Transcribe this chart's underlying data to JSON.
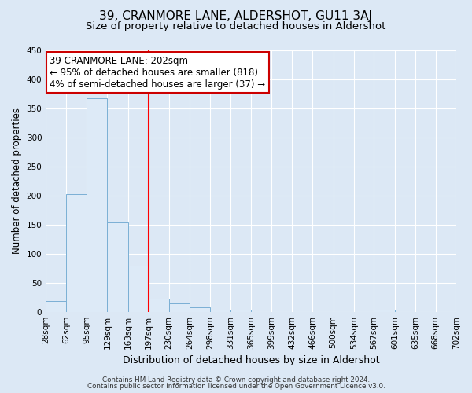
{
  "title": "39, CRANMORE LANE, ALDERSHOT, GU11 3AJ",
  "subtitle": "Size of property relative to detached houses in Aldershot",
  "xlabel": "Distribution of detached houses by size in Aldershot",
  "ylabel": "Number of detached properties",
  "bin_edges": [
    28,
    62,
    95,
    129,
    163,
    197,
    230,
    264,
    298,
    331,
    365,
    399,
    432,
    466,
    500,
    534,
    567,
    601,
    635,
    668,
    702
  ],
  "bar_heights": [
    18,
    203,
    367,
    154,
    80,
    22,
    15,
    8,
    3,
    3,
    0,
    0,
    0,
    0,
    0,
    0,
    3,
    0,
    0,
    0
  ],
  "bar_facecolor": "#ddeaf7",
  "bar_edgecolor": "#7aafd4",
  "red_line_x": 197,
  "annotation_line1": "39 CRANMORE LANE: 202sqm",
  "annotation_line2": "← 95% of detached houses are smaller (818)",
  "annotation_line3": "4% of semi-detached houses are larger (37) →",
  "annotation_box_edgecolor": "#cc0000",
  "annotation_box_facecolor": "#ffffff",
  "ylim": [
    0,
    450
  ],
  "yticks": [
    0,
    50,
    100,
    150,
    200,
    250,
    300,
    350,
    400,
    450
  ],
  "background_color": "#dce8f5",
  "plot_background_color": "#dce8f5",
  "grid_color": "#ffffff",
  "footer_line1": "Contains HM Land Registry data © Crown copyright and database right 2024.",
  "footer_line2": "Contains public sector information licensed under the Open Government Licence v3.0.",
  "title_fontsize": 11,
  "subtitle_fontsize": 9.5,
  "xlabel_fontsize": 9,
  "ylabel_fontsize": 8.5,
  "tick_fontsize": 7.5,
  "annotation_fontsize": 8.5
}
